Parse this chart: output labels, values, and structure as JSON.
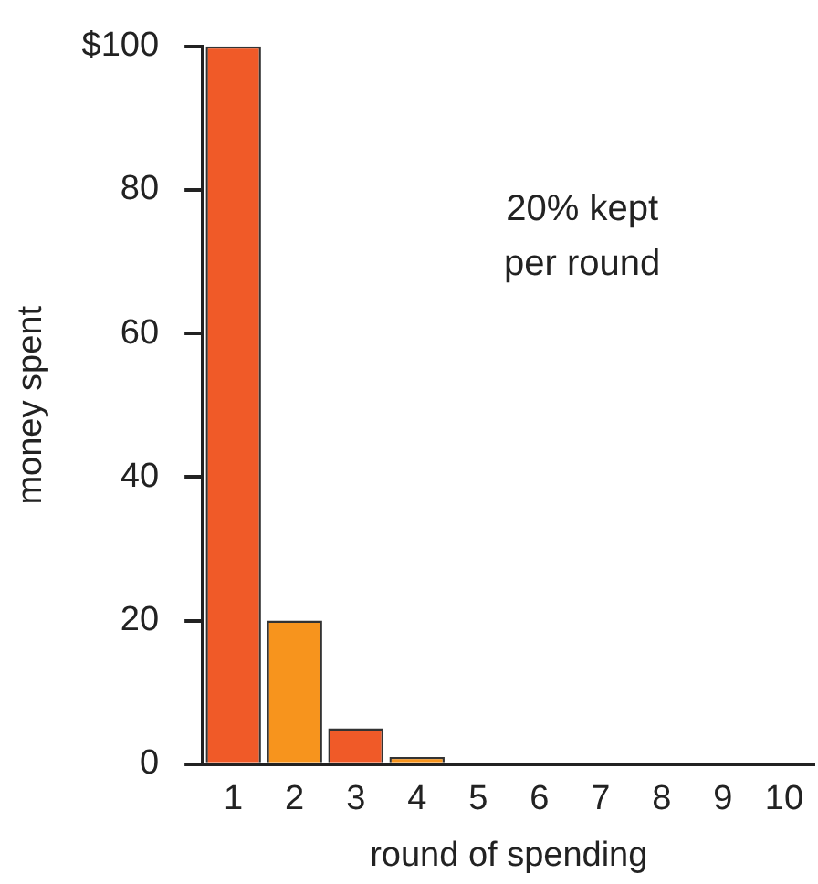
{
  "chart_data": {
    "type": "bar",
    "xlabel": "round of spending",
    "ylabel": "money spent",
    "categories": [
      "1",
      "2",
      "3",
      "4",
      "5",
      "6",
      "7",
      "8",
      "9",
      "10"
    ],
    "values": [
      100,
      20,
      5,
      1,
      0,
      0,
      0,
      0,
      0,
      0
    ],
    "colors": [
      "#f05a28",
      "#f7941d",
      "#f05a28",
      "#f7941d",
      "#f05a28",
      "#f7941d",
      "#f05a28",
      "#f7941d",
      "#f05a28",
      "#f7941d"
    ],
    "ylim": [
      0,
      100
    ],
    "yticks": [
      0,
      20,
      40,
      60,
      80,
      {
        "value": 100,
        "label": "$100"
      }
    ],
    "grid": false,
    "legend": false,
    "annotations": [
      "20% kept\nper round"
    ]
  }
}
